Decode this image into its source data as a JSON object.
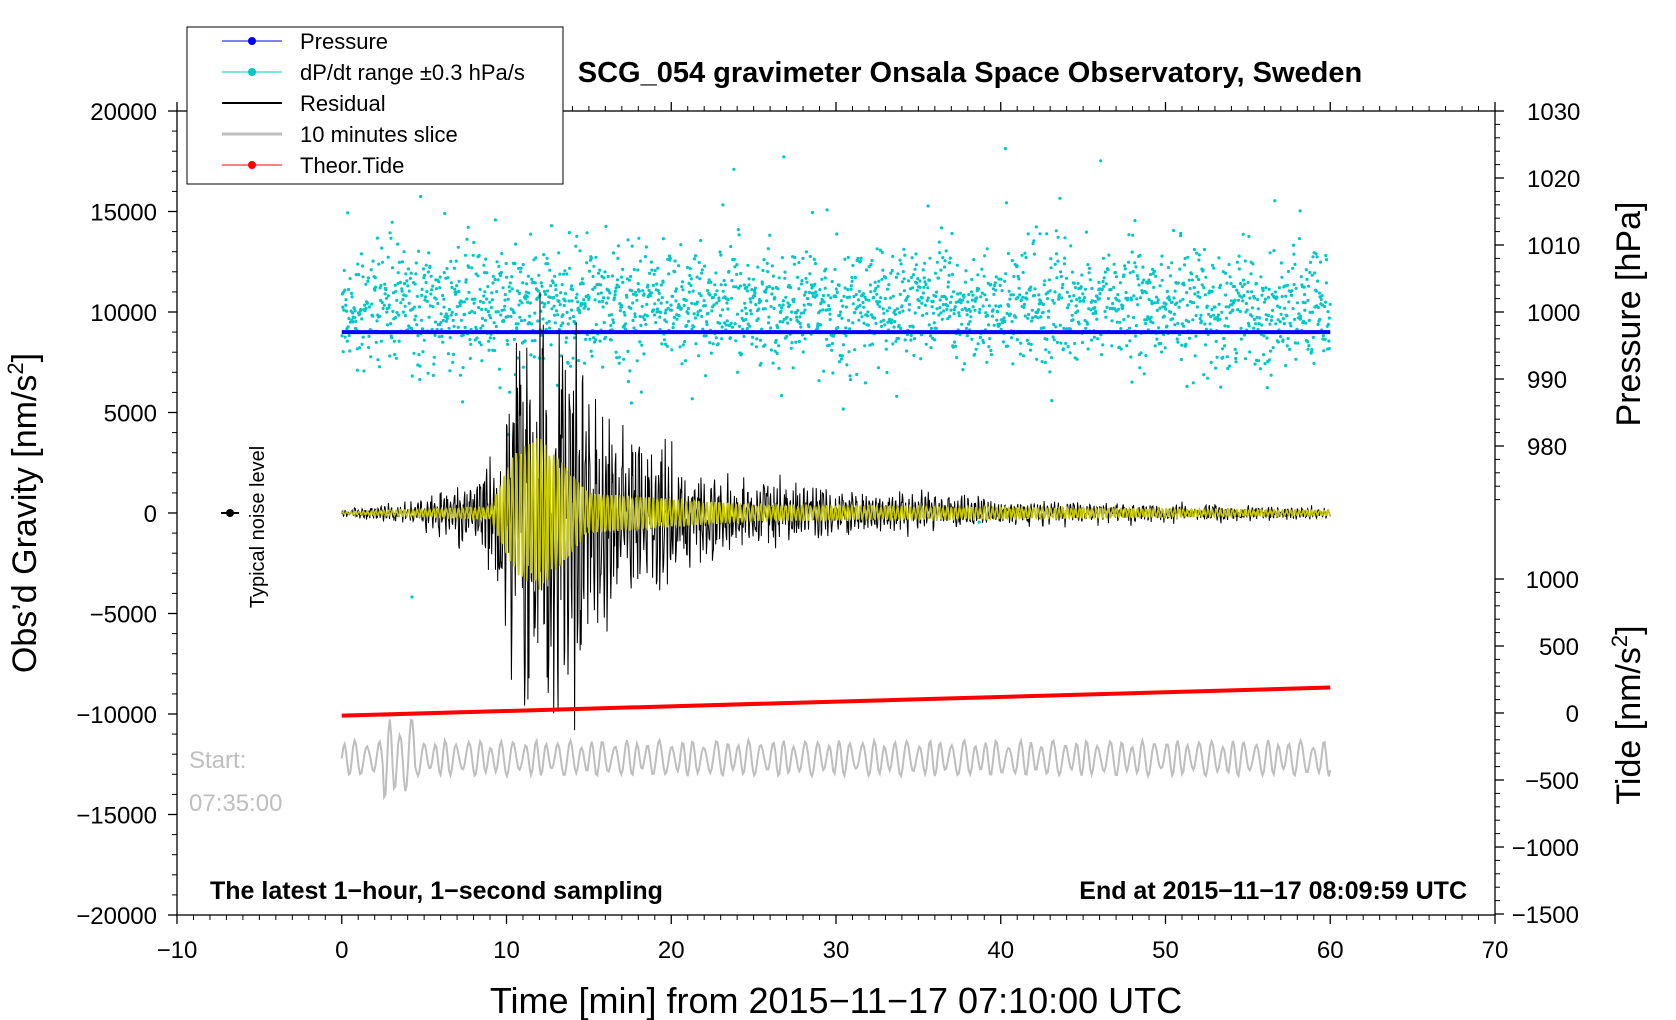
{
  "chart_data": {
    "type": "line",
    "title": "SCG_054 gravimeter Onsala Space Observatory, Sweden",
    "xlabel": "Time [min] from 2015−11−17 07:10:00 UTC",
    "ylabel_left_main": "Obs’d Gravity [nm/s",
    "ylabel_left_sup": "2",
    "ylabel_left_close": "]",
    "ylabel_right_pressure": "Pressure [hPa]",
    "ylabel_right_tide_main": "Tide [nm/s",
    "ylabel_right_tide_sup": "2",
    "ylabel_right_tide_close": "]",
    "xlim": [
      -10,
      70
    ],
    "ylim_gravity": [
      -20000,
      20000
    ],
    "ylim_pressure": [
      970,
      1030
    ],
    "ylim_tide": [
      -1500,
      1000
    ],
    "x_ticks": [
      -10,
      0,
      10,
      20,
      30,
      40,
      50,
      60,
      70
    ],
    "x_tick_labels": [
      "−10",
      "0",
      "10",
      "20",
      "30",
      "40",
      "50",
      "60",
      "70"
    ],
    "gravity_ticks": [
      20000,
      15000,
      10000,
      5000,
      0,
      -5000,
      -10000,
      -15000,
      -20000
    ],
    "gravity_tick_labels": [
      "20000",
      "15000",
      "10000",
      "5000",
      "0",
      "−5000",
      "−10000",
      "−15000",
      "−20000"
    ],
    "pressure_ticks": [
      1030,
      1020,
      1010,
      1000,
      990,
      980
    ],
    "pressure_tick_labels": [
      "1030",
      "1020",
      "1010",
      "1000",
      "990",
      "980"
    ],
    "tide_ticks": [
      1000,
      500,
      0,
      -500,
      -1000,
      -1500
    ],
    "tide_tick_labels": [
      "1000",
      "500",
      "0",
      "−500",
      "−1000",
      "−1500"
    ],
    "legend": [
      {
        "label": "Pressure",
        "color": "#0000ff",
        "marker": true
      },
      {
        "label": "dP/dt range ±0.3 hPa/s",
        "color": "#00c8c8",
        "marker": true
      },
      {
        "label": "Residual",
        "color": "#000000",
        "marker": false
      },
      {
        "label": "10 minutes slice",
        "color": "#bebebe",
        "marker": false
      },
      {
        "label": "Theor.Tide",
        "color": "#ff0000",
        "marker": true
      }
    ],
    "series": [
      {
        "name": "Pressure",
        "axis": "pressure",
        "color": "#0000ff",
        "x": [
          0,
          60
        ],
        "values": [
          997,
          997
        ]
      },
      {
        "name": "dP/dt range ±0.3 hPa/s",
        "axis": "gravity",
        "color": "#00c8c8",
        "x_range": [
          0,
          60
        ],
        "center": 10300,
        "spread": 2600
      },
      {
        "name": "Residual",
        "axis": "gravity",
        "color": "#000000",
        "x": [
          0,
          4.5,
          8.5,
          10.5,
          12.2,
          13.5,
          17,
          25,
          40,
          60
        ],
        "envelope": [
          150,
          500,
          1500,
          6000,
          9000,
          8000,
          3500,
          1200,
          500,
          250
        ]
      },
      {
        "name": "Residual (filtered)",
        "axis": "gravity",
        "color": "#c8c800",
        "x": [
          0,
          9,
          10.5,
          12,
          15,
          25,
          60
        ],
        "envelope": [
          50,
          300,
          3000,
          3800,
          1000,
          400,
          120
        ]
      },
      {
        "name": "10 minutes slice",
        "axis": "gravity",
        "color": "#bebebe",
        "x_range": [
          0,
          60
        ],
        "center": -12200,
        "amplitude": 900
      },
      {
        "name": "Theor.Tide",
        "axis": "tide",
        "color": "#ff0000",
        "x": [
          0,
          60
        ],
        "values": [
          -20,
          190
        ]
      }
    ],
    "annotations": {
      "noise_label": "Typical noise level",
      "noise_marker": {
        "x": -7,
        "y": 0
      },
      "start_line1": "Start:",
      "start_line2": "07:35:00",
      "latest_text": "The latest 1−hour, 1−second sampling",
      "end_text": "End at 2015−11−17 08:09:59 UTC"
    },
    "colors": {
      "pressure": "#0000ff",
      "dpdt": "#00c8c8",
      "residual": "#000000",
      "filtered": "#c8c800",
      "slice": "#bebebe",
      "tide": "#ff0000"
    }
  }
}
